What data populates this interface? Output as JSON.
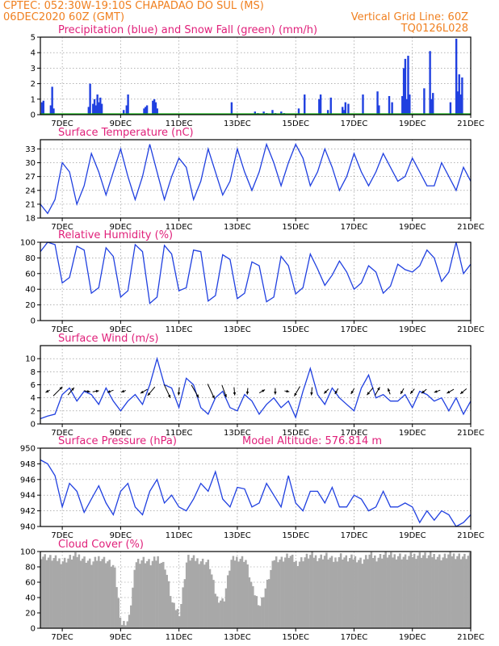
{
  "header": {
    "line1_left": "CPTEC:   052:30W-19:10S   CHAPADAO DO SUL (MS)",
    "line2_left": "06DEC2020 60Z (GMT)",
    "line2_right": "Vertical Grid Line: 60Z",
    "line3_right": "TQ0126L028"
  },
  "colors": {
    "series": "#2040e0",
    "snow": "#10b010",
    "cloud": "#a8a8a8",
    "title": "#e0207a",
    "header": "#f08020"
  },
  "x_axis": {
    "start_day": 6.25,
    "end_day": 21.0,
    "tick_labels": [
      "7DEC",
      "9DEC",
      "11DEC",
      "13DEC",
      "15DEC",
      "17DEC",
      "19DEC",
      "21DEC"
    ],
    "tick_days": [
      7,
      9,
      11,
      13,
      15,
      17,
      19,
      21
    ]
  },
  "chart_data": [
    {
      "id": "precip",
      "type": "bar",
      "title": "Precipitation (blue) and Snow Fall (green) (mm/h)",
      "ylim": [
        0,
        5
      ],
      "yticks": [
        0,
        1,
        2,
        3,
        4,
        5
      ],
      "series": [
        {
          "name": "Precipitation",
          "x": [
            6.3,
            6.35,
            6.6,
            6.62,
            6.65,
            6.7,
            7.9,
            7.95,
            8.05,
            8.1,
            8.15,
            8.2,
            8.25,
            8.3,
            8.35,
            9.1,
            9.2,
            9.25,
            9.8,
            9.85,
            9.9,
            10.1,
            10.15,
            10.2,
            10.25,
            12.8,
            13.6,
            13.7,
            13.9,
            14.0,
            14.2,
            14.3,
            14.5,
            14.6,
            15.1,
            15.3,
            15.8,
            15.85,
            16.1,
            16.2,
            16.6,
            16.65,
            16.7,
            16.8,
            17.3,
            17.8,
            17.85,
            18.2,
            18.3,
            18.65,
            18.7,
            18.75,
            18.8,
            18.85,
            18.9,
            19.4,
            19.6,
            19.65,
            19.7,
            20.3,
            20.5,
            20.55,
            20.6,
            20.65,
            20.7
          ],
          "values": [
            0.8,
            0.9,
            0.6,
            0.2,
            1.8,
            0.4,
            0.5,
            2.0,
            0.7,
            1.0,
            0.6,
            1.3,
            0.8,
            1.1,
            0.7,
            0.3,
            0.6,
            1.3,
            0.4,
            0.5,
            0.6,
            0.9,
            1.0,
            0.8,
            0.4,
            0.8,
            0.2,
            0.1,
            0.2,
            0.1,
            0.3,
            0.1,
            0.2,
            0.1,
            0.4,
            1.3,
            1.0,
            1.3,
            0.3,
            1.1,
            0.5,
            0.3,
            0.8,
            0.7,
            1.3,
            1.5,
            0.6,
            1.2,
            0.8,
            1.2,
            3.0,
            3.6,
            1.0,
            3.8,
            1.3,
            1.7,
            4.1,
            1.0,
            1.4,
            0.8,
            4.9,
            1.5,
            2.6,
            1.3,
            2.4
          ]
        },
        {
          "name": "Snow Fall",
          "x": [],
          "values": []
        }
      ]
    },
    {
      "id": "temperature",
      "type": "line",
      "title": "Surface Temperature (nC)",
      "ylim": [
        18,
        35
      ],
      "yticks": [
        18,
        21,
        24,
        27,
        30,
        33
      ],
      "series": [
        {
          "name": "Temperature",
          "x": [
            6.25,
            6.5,
            6.75,
            7.0,
            7.25,
            7.5,
            7.75,
            8.0,
            8.25,
            8.5,
            8.75,
            9.0,
            9.25,
            9.5,
            9.75,
            10.0,
            10.25,
            10.5,
            10.75,
            11.0,
            11.25,
            11.5,
            11.75,
            12.0,
            12.25,
            12.5,
            12.75,
            13.0,
            13.25,
            13.5,
            13.75,
            14.0,
            14.25,
            14.5,
            14.75,
            15.0,
            15.25,
            15.5,
            15.75,
            16.0,
            16.25,
            16.5,
            16.75,
            17.0,
            17.25,
            17.5,
            17.75,
            18.0,
            18.25,
            18.5,
            18.75,
            19.0,
            19.25,
            19.5,
            19.75,
            20.0,
            20.25,
            20.5,
            20.75,
            21.0
          ],
          "values": [
            21,
            19,
            22,
            30,
            28,
            21,
            25,
            32,
            28,
            23,
            28,
            33,
            27,
            22,
            27,
            34,
            28,
            22,
            27,
            31,
            29,
            22,
            26,
            33,
            28,
            23,
            26,
            33,
            28,
            24,
            28,
            34,
            30,
            25,
            30,
            34,
            31,
            25,
            28,
            33,
            29,
            24,
            27,
            32,
            28,
            25,
            28,
            32,
            29,
            26,
            27,
            31,
            28,
            25,
            25,
            30,
            27,
            24,
            29,
            26
          ]
        }
      ]
    },
    {
      "id": "humidity",
      "type": "line",
      "title": "Relative Humidity (%)",
      "ylim": [
        0,
        100
      ],
      "yticks": [
        0,
        20,
        40,
        60,
        80,
        100
      ],
      "series": [
        {
          "name": "Humidity",
          "x": [
            6.25,
            6.5,
            6.75,
            7.0,
            7.25,
            7.5,
            7.75,
            8.0,
            8.25,
            8.5,
            8.75,
            9.0,
            9.25,
            9.5,
            9.75,
            10.0,
            10.25,
            10.5,
            10.75,
            11.0,
            11.25,
            11.5,
            11.75,
            12.0,
            12.25,
            12.5,
            12.75,
            13.0,
            13.25,
            13.5,
            13.75,
            14.0,
            14.25,
            14.5,
            14.75,
            15.0,
            15.25,
            15.5,
            15.75,
            16.0,
            16.25,
            16.5,
            16.75,
            17.0,
            17.25,
            17.5,
            17.75,
            18.0,
            18.25,
            18.5,
            18.75,
            19.0,
            19.25,
            19.5,
            19.75,
            20.0,
            20.25,
            20.5,
            20.75,
            21.0
          ],
          "values": [
            88,
            100,
            97,
            48,
            55,
            95,
            90,
            35,
            42,
            93,
            82,
            30,
            38,
            97,
            88,
            22,
            30,
            96,
            85,
            38,
            42,
            90,
            88,
            25,
            32,
            84,
            78,
            28,
            35,
            75,
            70,
            24,
            30,
            82,
            70,
            34,
            42,
            85,
            66,
            45,
            58,
            76,
            62,
            40,
            48,
            70,
            62,
            35,
            44,
            72,
            65,
            62,
            70,
            90,
            80,
            50,
            62,
            100,
            60,
            72
          ]
        }
      ]
    },
    {
      "id": "wind",
      "type": "line",
      "title": "Surface Wind (m/s)",
      "ylim": [
        0,
        12
      ],
      "yticks": [
        0,
        2,
        4,
        6,
        8,
        10
      ],
      "series": [
        {
          "name": "Wind speed",
          "x": [
            6.25,
            6.5,
            6.75,
            7.0,
            7.25,
            7.5,
            7.75,
            8.0,
            8.25,
            8.5,
            8.75,
            9.0,
            9.25,
            9.5,
            9.75,
            10.0,
            10.25,
            10.5,
            10.75,
            11.0,
            11.25,
            11.5,
            11.75,
            12.0,
            12.25,
            12.5,
            12.75,
            13.0,
            13.25,
            13.5,
            13.75,
            14.0,
            14.25,
            14.5,
            14.75,
            15.0,
            15.25,
            15.5,
            15.75,
            16.0,
            16.25,
            16.5,
            16.75,
            17.0,
            17.25,
            17.5,
            17.75,
            18.0,
            18.25,
            18.5,
            18.75,
            19.0,
            19.25,
            19.5,
            19.75,
            20.0,
            20.25,
            20.5,
            20.75,
            21.0
          ],
          "values": [
            0.8,
            1.2,
            1.5,
            4.5,
            5.5,
            3.5,
            5.0,
            4.5,
            3.0,
            5.5,
            3.5,
            2.0,
            3.5,
            4.5,
            3.0,
            6.0,
            10.0,
            6.0,
            5.5,
            2.5,
            7.0,
            6.0,
            2.5,
            1.5,
            4.0,
            5.0,
            2.5,
            2.0,
            4.5,
            3.5,
            1.5,
            3.0,
            4.0,
            2.5,
            3.5,
            1.0,
            5.0,
            8.5,
            4.5,
            3.0,
            5.5,
            4.0,
            3.0,
            2.0,
            5.5,
            7.5,
            4.0,
            4.5,
            3.5,
            3.5,
            4.5,
            2.5,
            5.0,
            4.5,
            3.5,
            4.0,
            2.0,
            4.0,
            1.5,
            3.5
          ]
        }
      ],
      "arrows": [
        {
          "x": 6.5,
          "dir": 210,
          "len": 6
        },
        {
          "x": 6.85,
          "dir": 45,
          "len": 16
        },
        {
          "x": 7.3,
          "dir": 50,
          "len": 12
        },
        {
          "x": 7.85,
          "dir": 350,
          "len": 8
        },
        {
          "x": 8.15,
          "dir": 10,
          "len": 8
        },
        {
          "x": 8.65,
          "dir": 200,
          "len": 8
        },
        {
          "x": 9.1,
          "dir": 200,
          "len": 6
        },
        {
          "x": 9.8,
          "dir": 210,
          "len": 10
        },
        {
          "x": 10.05,
          "dir": 230,
          "len": 14
        },
        {
          "x": 10.6,
          "dir": 295,
          "len": 18
        },
        {
          "x": 11.0,
          "dir": 265,
          "len": 10
        },
        {
          "x": 11.55,
          "dir": 300,
          "len": 18
        },
        {
          "x": 12.1,
          "dir": 295,
          "len": 20
        },
        {
          "x": 12.55,
          "dir": 290,
          "len": 16
        },
        {
          "x": 12.9,
          "dir": 275,
          "len": 10
        },
        {
          "x": 13.35,
          "dir": 265,
          "len": 8
        },
        {
          "x": 13.85,
          "dir": 30,
          "len": 8
        },
        {
          "x": 14.3,
          "dir": 270,
          "len": 8
        },
        {
          "x": 14.7,
          "dir": 350,
          "len": 6
        },
        {
          "x": 15.05,
          "dir": 240,
          "len": 14
        },
        {
          "x": 15.55,
          "dir": 265,
          "len": 10
        },
        {
          "x": 16.05,
          "dir": 225,
          "len": 8
        },
        {
          "x": 16.4,
          "dir": 240,
          "len": 8
        },
        {
          "x": 16.95,
          "dir": 240,
          "len": 8
        },
        {
          "x": 17.55,
          "dir": 230,
          "len": 12
        },
        {
          "x": 17.8,
          "dir": 60,
          "len": 12
        },
        {
          "x": 18.2,
          "dir": 110,
          "len": 8
        },
        {
          "x": 18.65,
          "dir": 240,
          "len": 8
        },
        {
          "x": 19.0,
          "dir": 230,
          "len": 8
        },
        {
          "x": 19.4,
          "dir": 220,
          "len": 8
        },
        {
          "x": 19.85,
          "dir": 200,
          "len": 8
        },
        {
          "x": 20.3,
          "dir": 210,
          "len": 10
        },
        {
          "x": 20.75,
          "dir": 220,
          "len": 10
        }
      ]
    },
    {
      "id": "pressure",
      "type": "line",
      "title": "Surface Pressure (hPa)",
      "annotation": "Model Altitude: 576.814  m",
      "ylim": [
        940,
        950
      ],
      "yticks": [
        940,
        942,
        944,
        946,
        948,
        950
      ],
      "series": [
        {
          "name": "Pressure",
          "x": [
            6.25,
            6.5,
            6.75,
            7.0,
            7.25,
            7.5,
            7.75,
            8.0,
            8.25,
            8.5,
            8.75,
            9.0,
            9.25,
            9.5,
            9.75,
            10.0,
            10.25,
            10.5,
            10.75,
            11.0,
            11.25,
            11.5,
            11.75,
            12.0,
            12.25,
            12.5,
            12.75,
            13.0,
            13.25,
            13.5,
            13.75,
            14.0,
            14.25,
            14.5,
            14.75,
            15.0,
            15.25,
            15.5,
            15.75,
            16.0,
            16.25,
            16.5,
            16.75,
            17.0,
            17.25,
            17.5,
            17.75,
            18.0,
            18.25,
            18.5,
            18.75,
            19.0,
            19.25,
            19.5,
            19.75,
            20.0,
            20.25,
            20.5,
            20.75,
            21.0
          ],
          "values": [
            948.5,
            948.0,
            946.5,
            942.5,
            945.5,
            944.5,
            941.8,
            943.5,
            945.2,
            943.0,
            941.5,
            944.5,
            945.5,
            942.5,
            941.5,
            944.5,
            946.0,
            943.0,
            944.0,
            942.5,
            942.0,
            943.5,
            945.5,
            944.5,
            947.0,
            943.5,
            942.5,
            945.0,
            944.8,
            942.5,
            943.0,
            945.5,
            944.0,
            942.5,
            946.5,
            943.0,
            942.0,
            944.5,
            944.5,
            943.0,
            945.0,
            942.5,
            942.5,
            944.0,
            943.5,
            942.0,
            942.5,
            944.5,
            942.5,
            942.5,
            943.0,
            942.5,
            940.5,
            942.0,
            940.8,
            942.0,
            941.5,
            940.0,
            940.5,
            941.5
          ]
        }
      ]
    },
    {
      "id": "cloud",
      "type": "area",
      "title": "Cloud Cover (%)",
      "ylim": [
        0,
        100
      ],
      "yticks": [
        0,
        20,
        40,
        60,
        80,
        100
      ],
      "series": [
        {
          "name": "Cloud cover",
          "x": [
            6.25,
            6.5,
            6.75,
            7.0,
            7.25,
            7.5,
            7.75,
            8.0,
            8.25,
            8.5,
            8.75,
            9.0,
            9.25,
            9.5,
            9.75,
            10.0,
            10.25,
            10.5,
            10.75,
            11.0,
            11.25,
            11.5,
            11.75,
            12.0,
            12.25,
            12.5,
            12.75,
            13.0,
            13.25,
            13.5,
            13.75,
            14.0,
            14.25,
            14.5,
            14.75,
            15.0,
            15.25,
            15.5,
            15.75,
            16.0,
            16.25,
            16.5,
            16.75,
            17.0,
            17.25,
            17.5,
            17.75,
            18.0,
            18.25,
            18.5,
            18.75,
            19.0,
            19.25,
            19.5,
            19.75,
            20.0,
            20.25,
            20.5,
            20.75,
            21.0
          ],
          "values": [
            95,
            92,
            90,
            88,
            92,
            95,
            90,
            85,
            93,
            88,
            80,
            5,
            10,
            88,
            90,
            85,
            92,
            80,
            30,
            20,
            92,
            90,
            88,
            85,
            40,
            35,
            88,
            92,
            90,
            50,
            30,
            60,
            92,
            90,
            95,
            85,
            92,
            95,
            92,
            95,
            88,
            95,
            90,
            92,
            88,
            95,
            92,
            96,
            94,
            95,
            92,
            95,
            96,
            94,
            95,
            92,
            96,
            95,
            93,
            94
          ]
        }
      ]
    }
  ]
}
